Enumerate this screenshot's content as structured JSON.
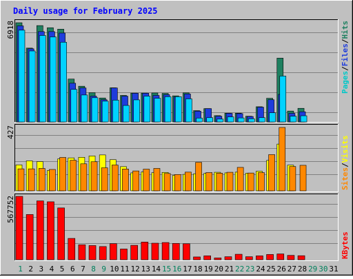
{
  "chart_data": [
    {
      "type": "bar",
      "panel": "hits-files-pages",
      "title": "Daily usage for February 2025",
      "ylabel_top_value": "6918",
      "side_labels": [
        "Pages",
        "/",
        "Files",
        "/",
        "Hits"
      ],
      "categories": [
        "1",
        "2",
        "3",
        "4",
        "5",
        "6",
        "7",
        "8",
        "9",
        "10",
        "11",
        "12",
        "13",
        "14",
        "15",
        "16",
        "17",
        "18",
        "19",
        "20",
        "21",
        "22",
        "23",
        "24",
        "25",
        "26",
        "27",
        "28",
        "29",
        "30",
        "31"
      ],
      "ylim": [
        0,
        6918
      ],
      "series": [
        {
          "name": "Hits",
          "color": "#1e8060",
          "values": [
            6918,
            5150,
            6720,
            6570,
            6470,
            2990,
            2490,
            2040,
            1670,
            2380,
            1850,
            2010,
            2010,
            2020,
            1990,
            1820,
            2030,
            790,
            930,
            440,
            610,
            610,
            400,
            1060,
            1650,
            4450,
            760,
            950,
            0,
            0,
            0
          ]
        },
        {
          "name": "Files",
          "color": "#1e3cdc",
          "values": [
            6700,
            5100,
            6300,
            6300,
            6200,
            2700,
            2370,
            1800,
            1550,
            2370,
            1800,
            2000,
            2000,
            1850,
            1900,
            1750,
            1950,
            750,
            930,
            400,
            600,
            580,
            380,
            1030,
            1550,
            1920,
            600,
            710,
            0,
            0,
            0
          ]
        },
        {
          "name": "Pages",
          "color": "#00d2ff",
          "values": [
            6400,
            4950,
            6030,
            5930,
            5560,
            2270,
            1880,
            1690,
            1450,
            1520,
            1150,
            1540,
            1800,
            1650,
            1760,
            1760,
            1610,
            270,
            300,
            200,
            350,
            280,
            220,
            300,
            640,
            3200,
            400,
            430,
            0,
            0,
            0
          ]
        }
      ],
      "label_colors": {
        "Pages": "#00c8c8",
        "Files": "#1e3cdc",
        "Hits": "#1e8060",
        "sep": "#000000"
      }
    },
    {
      "type": "bar",
      "panel": "visits-sites",
      "ylabel_top_value": "427",
      "side_labels": [
        "Sites",
        "/",
        "Visits"
      ],
      "categories": [
        "1",
        "2",
        "3",
        "4",
        "5",
        "6",
        "7",
        "8",
        "9",
        "10",
        "11",
        "12",
        "13",
        "14",
        "15",
        "16",
        "17",
        "18",
        "19",
        "20",
        "21",
        "22",
        "23",
        "24",
        "25",
        "26",
        "27",
        "28",
        "29",
        "30",
        "31"
      ],
      "ylim": [
        0,
        427
      ],
      "series": [
        {
          "name": "Visits",
          "color": "#ffff00",
          "values": [
            175,
            202,
            197,
            137,
            215,
            222,
            226,
            235,
            242,
            210,
            163,
            121,
            127,
            122,
            124,
            104,
            111,
            115,
            118,
            125,
            121,
            126,
            119,
            132,
            205,
            315,
            173,
            0,
            0,
            0,
            0
          ]
        },
        {
          "name": "Sites",
          "color": "#ff8800",
          "values": [
            148,
            148,
            151,
            144,
            225,
            206,
            182,
            196,
            155,
            174,
            147,
            134,
            146,
            151,
            117,
            110,
            126,
            192,
            123,
            119,
            125,
            158,
            120,
            123,
            244,
            427,
            164,
            172,
            0,
            0,
            0
          ]
        }
      ],
      "label_colors": {
        "Sites": "#ff8800",
        "Visits": "#ffff00",
        "sep": "#000000"
      }
    },
    {
      "type": "bar",
      "panel": "kbytes",
      "ylabel_top_value": "567752",
      "side_labels": [
        "KBytes"
      ],
      "categories": [
        "1",
        "2",
        "3",
        "4",
        "5",
        "6",
        "7",
        "8",
        "9",
        "10",
        "11",
        "12",
        "13",
        "14",
        "15",
        "16",
        "17",
        "18",
        "19",
        "20",
        "21",
        "22",
        "23",
        "24",
        "25",
        "26",
        "27",
        "28",
        "29",
        "30",
        "31"
      ],
      "ylim": [
        0,
        567752
      ],
      "series": [
        {
          "name": "KBytes",
          "color": "#ff0000",
          "values": [
            567752,
            405000,
            527000,
            519000,
            464000,
            191000,
            134000,
            127000,
            118000,
            144000,
            96000,
            129000,
            158000,
            148000,
            154000,
            146000,
            143000,
            25000,
            35000,
            16000,
            27000,
            49000,
            27000,
            35000,
            47000,
            52000,
            39000,
            36000,
            0,
            0,
            0
          ]
        }
      ],
      "label_colors": {
        "KBytes": "#ff0000"
      }
    }
  ],
  "x_axis": {
    "days": [
      "1",
      "2",
      "3",
      "4",
      "5",
      "6",
      "7",
      "8",
      "9",
      "10",
      "11",
      "12",
      "13",
      "14",
      "15",
      "16",
      "17",
      "18",
      "19",
      "20",
      "21",
      "22",
      "23",
      "24",
      "25",
      "26",
      "27",
      "28",
      "29",
      "30",
      "31"
    ],
    "weekend_days": [
      "1",
      "8",
      "9",
      "15",
      "16",
      "22",
      "23",
      "29",
      "30"
    ],
    "weekend_color": "#00805c",
    "weekday_color": "#000000"
  },
  "colors": {
    "title": "#0000ff",
    "background": "#c0c0c0",
    "grid": "#808080"
  }
}
